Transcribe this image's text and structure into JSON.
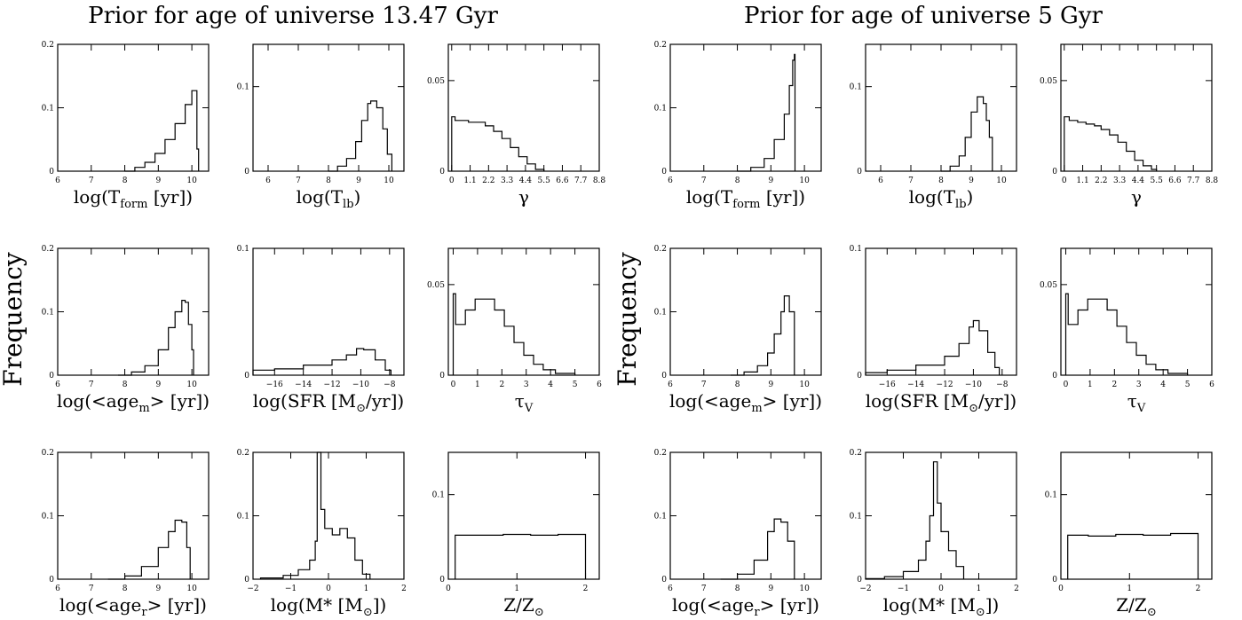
{
  "figure": {
    "left_title": "Prior for age of universe 13.47 Gyr",
    "right_title": "Prior for age of universe 5 Gyr",
    "ylabel": "Frequency"
  },
  "chart_data": [
    {
      "type": "histogram",
      "group": "13.47 Gyr",
      "xlabel": "log(T_form [yr])",
      "xlim": [
        6,
        10.5
      ],
      "ylim": [
        0,
        0.2
      ],
      "xticks": [
        6,
        7,
        8,
        9,
        10
      ],
      "yticks": [
        0,
        0.1,
        0.2
      ],
      "ytick_labels": [
        "0",
        "0.1",
        "0.2"
      ],
      "points": [
        [
          8.0,
          0.0
        ],
        [
          8.3,
          0.006
        ],
        [
          8.6,
          0.014
        ],
        [
          8.9,
          0.028
        ],
        [
          9.2,
          0.05
        ],
        [
          9.5,
          0.075
        ],
        [
          9.8,
          0.105
        ],
        [
          10.0,
          0.127
        ],
        [
          10.1,
          0.127
        ],
        [
          10.15,
          0.035
        ],
        [
          10.2,
          0.0
        ]
      ]
    },
    {
      "type": "histogram",
      "group": "13.47 Gyr",
      "xlabel": "log(T_lb)",
      "xlim": [
        5.5,
        10.5
      ],
      "ylim": [
        0,
        0.15
      ],
      "xticks": [
        6,
        7,
        8,
        9,
        10
      ],
      "yticks": [
        0,
        0.1
      ],
      "ytick_labels": [
        "0",
        "0.1"
      ],
      "points": [
        [
          8.0,
          0.0
        ],
        [
          8.3,
          0.006
        ],
        [
          8.6,
          0.015
        ],
        [
          8.9,
          0.035
        ],
        [
          9.1,
          0.06
        ],
        [
          9.3,
          0.08
        ],
        [
          9.4,
          0.083
        ],
        [
          9.6,
          0.075
        ],
        [
          9.8,
          0.05
        ],
        [
          9.95,
          0.02
        ],
        [
          10.1,
          0.0
        ]
      ]
    },
    {
      "type": "histogram",
      "group": "13.47 Gyr",
      "xlabel": "γ",
      "xlim": [
        -0.2,
        8.8
      ],
      "ylim": [
        0,
        0.07
      ],
      "xticks": [
        0,
        1.1,
        2.2,
        3.3,
        4.4,
        5.5,
        6.6,
        7.7,
        8.8
      ],
      "xtick_labels": [
        "0",
        "1.1",
        "2.2",
        "3.3",
        "4.4",
        "5.5",
        "6.6",
        "7.7",
        "8.8"
      ],
      "yticks": [
        0,
        0.05
      ],
      "ytick_labels": [
        "0",
        "0.05"
      ],
      "points": [
        [
          0.0,
          0.03
        ],
        [
          0.2,
          0.028
        ],
        [
          0.6,
          0.028
        ],
        [
          1.0,
          0.027
        ],
        [
          1.5,
          0.027
        ],
        [
          2.0,
          0.025
        ],
        [
          2.5,
          0.022
        ],
        [
          3.0,
          0.018
        ],
        [
          3.5,
          0.013
        ],
        [
          4.0,
          0.008
        ],
        [
          4.5,
          0.004
        ],
        [
          5.0,
          0.001
        ],
        [
          5.5,
          0.0
        ]
      ]
    },
    {
      "type": "histogram",
      "group": "5 Gyr",
      "xlabel": "log(T_form [yr])",
      "xlim": [
        6,
        10.5
      ],
      "ylim": [
        0,
        0.2
      ],
      "xticks": [
        6,
        7,
        8,
        9,
        10
      ],
      "yticks": [
        0,
        0.1,
        0.2
      ],
      "ytick_labels": [
        "0",
        "0.1",
        "0.2"
      ],
      "points": [
        [
          8.0,
          0.0
        ],
        [
          8.4,
          0.006
        ],
        [
          8.8,
          0.02
        ],
        [
          9.1,
          0.05
        ],
        [
          9.4,
          0.09
        ],
        [
          9.55,
          0.135
        ],
        [
          9.65,
          0.175
        ],
        [
          9.7,
          0.184
        ],
        [
          9.72,
          0.0
        ]
      ]
    },
    {
      "type": "histogram",
      "group": "5 Gyr",
      "xlabel": "log(T_lb)",
      "xlim": [
        5.5,
        10.5
      ],
      "ylim": [
        0,
        0.15
      ],
      "xticks": [
        6,
        7,
        8,
        9,
        10
      ],
      "yticks": [
        0,
        0.1
      ],
      "ytick_labels": [
        "0",
        "0.1"
      ],
      "points": [
        [
          8.0,
          0.0
        ],
        [
          8.3,
          0.006
        ],
        [
          8.6,
          0.018
        ],
        [
          8.8,
          0.04
        ],
        [
          9.0,
          0.07
        ],
        [
          9.2,
          0.088
        ],
        [
          9.4,
          0.08
        ],
        [
          9.5,
          0.06
        ],
        [
          9.6,
          0.04
        ],
        [
          9.7,
          0.0
        ]
      ]
    },
    {
      "type": "histogram",
      "group": "5 Gyr",
      "xlabel": "γ",
      "xlim": [
        -0.2,
        8.8
      ],
      "ylim": [
        0,
        0.07
      ],
      "xticks": [
        0,
        1.1,
        2.2,
        3.3,
        4.4,
        5.5,
        6.6,
        7.7,
        8.8
      ],
      "xtick_labels": [
        "0",
        "1.1",
        "2.2",
        "3.3",
        "4.4",
        "5.5",
        "6.6",
        "7.7",
        "8.8"
      ],
      "yticks": [
        0,
        0.05
      ],
      "ytick_labels": [
        "0",
        "0.05"
      ],
      "points": [
        [
          0.0,
          0.03
        ],
        [
          0.3,
          0.028
        ],
        [
          0.8,
          0.027
        ],
        [
          1.3,
          0.026
        ],
        [
          1.8,
          0.025
        ],
        [
          2.2,
          0.023
        ],
        [
          2.7,
          0.02
        ],
        [
          3.2,
          0.016
        ],
        [
          3.7,
          0.011
        ],
        [
          4.2,
          0.006
        ],
        [
          4.7,
          0.003
        ],
        [
          5.2,
          0.001
        ],
        [
          5.5,
          0.0
        ]
      ]
    },
    {
      "type": "histogram",
      "group": "13.47 Gyr",
      "xlabel": "log(<age_m> [yr])",
      "xlim": [
        6,
        10.5
      ],
      "ylim": [
        0,
        0.2
      ],
      "xticks": [
        6,
        7,
        8,
        9,
        10
      ],
      "yticks": [
        0,
        0.1,
        0.2
      ],
      "ytick_labels": [
        "0",
        "0.1",
        "0.2"
      ],
      "points": [
        [
          7.8,
          0.0
        ],
        [
          8.2,
          0.005
        ],
        [
          8.6,
          0.015
        ],
        [
          9.0,
          0.04
        ],
        [
          9.3,
          0.075
        ],
        [
          9.5,
          0.1
        ],
        [
          9.7,
          0.118
        ],
        [
          9.8,
          0.115
        ],
        [
          9.9,
          0.08
        ],
        [
          10.0,
          0.04
        ],
        [
          10.05,
          0.0
        ]
      ]
    },
    {
      "type": "histogram",
      "group": "13.47 Gyr",
      "xlabel": "log(SFR [M_⊙/yr])",
      "xlim": [
        -17.5,
        -7
      ],
      "ylim": [
        0,
        0.1
      ],
      "xticks": [
        -16,
        -14,
        -12,
        -10,
        -8
      ],
      "xtick_labels": [
        "−16",
        "−14",
        "−12",
        "−10",
        "−8"
      ],
      "yticks": [
        0,
        0.1
      ],
      "ytick_labels": [
        "0",
        "0.1"
      ],
      "points": [
        [
          -17.5,
          0.004
        ],
        [
          -16,
          0.005
        ],
        [
          -14,
          0.008
        ],
        [
          -12,
          0.012
        ],
        [
          -11,
          0.016
        ],
        [
          -10.3,
          0.021
        ],
        [
          -9.8,
          0.02
        ],
        [
          -9,
          0.012
        ],
        [
          -8.3,
          0.004
        ],
        [
          -7.9,
          0.0
        ]
      ]
    },
    {
      "type": "histogram",
      "group": "13.47 Gyr",
      "xlabel": "τ_V",
      "xlim": [
        -0.2,
        6
      ],
      "ylim": [
        0,
        0.07
      ],
      "xticks": [
        0,
        1,
        2,
        3,
        4,
        5,
        6
      ],
      "yticks": [
        0,
        0.05
      ],
      "ytick_labels": [
        "0",
        "0.05"
      ],
      "points": [
        [
          0.0,
          0.045
        ],
        [
          0.1,
          0.028
        ],
        [
          0.5,
          0.036
        ],
        [
          0.9,
          0.042
        ],
        [
          1.3,
          0.042
        ],
        [
          1.7,
          0.036
        ],
        [
          2.1,
          0.027
        ],
        [
          2.5,
          0.018
        ],
        [
          2.9,
          0.011
        ],
        [
          3.3,
          0.006
        ],
        [
          3.7,
          0.003
        ],
        [
          4.2,
          0.001
        ],
        [
          5.0,
          0.0
        ]
      ]
    },
    {
      "type": "histogram",
      "group": "5 Gyr",
      "xlabel": "log(<age_m> [yr])",
      "xlim": [
        6,
        10.5
      ],
      "ylim": [
        0,
        0.2
      ],
      "xticks": [
        6,
        7,
        8,
        9,
        10
      ],
      "yticks": [
        0,
        0.1,
        0.2
      ],
      "ytick_labels": [
        "0",
        "0.1",
        "0.2"
      ],
      "points": [
        [
          7.8,
          0.0
        ],
        [
          8.2,
          0.005
        ],
        [
          8.6,
          0.015
        ],
        [
          8.9,
          0.035
        ],
        [
          9.1,
          0.065
        ],
        [
          9.3,
          0.1
        ],
        [
          9.4,
          0.125
        ],
        [
          9.55,
          0.1
        ],
        [
          9.7,
          0.0
        ]
      ]
    },
    {
      "type": "histogram",
      "group": "5 Gyr",
      "xlabel": "log(SFR [M_⊙/yr])",
      "xlim": [
        -17.5,
        -7
      ],
      "ylim": [
        0,
        0.1
      ],
      "xticks": [
        -16,
        -14,
        -12,
        -10,
        -8
      ],
      "xtick_labels": [
        "−16",
        "−14",
        "−12",
        "−10",
        "−8"
      ],
      "yticks": [
        0,
        0.1
      ],
      "ytick_labels": [
        "0",
        "0.1"
      ],
      "points": [
        [
          -17.5,
          0.002
        ],
        [
          -16,
          0.004
        ],
        [
          -14,
          0.008
        ],
        [
          -12,
          0.015
        ],
        [
          -11,
          0.025
        ],
        [
          -10.3,
          0.038
        ],
        [
          -10.0,
          0.043
        ],
        [
          -9.6,
          0.035
        ],
        [
          -9.0,
          0.018
        ],
        [
          -8.5,
          0.006
        ],
        [
          -8.2,
          0.0
        ]
      ]
    },
    {
      "type": "histogram",
      "group": "5 Gyr",
      "xlabel": "τ_V",
      "xlim": [
        -0.2,
        6
      ],
      "ylim": [
        0,
        0.07
      ],
      "xticks": [
        0,
        1,
        2,
        3,
        4,
        5,
        6
      ],
      "yticks": [
        0,
        0.05
      ],
      "ytick_labels": [
        "0",
        "0.05"
      ],
      "points": [
        [
          0.0,
          0.045
        ],
        [
          0.1,
          0.028
        ],
        [
          0.5,
          0.036
        ],
        [
          0.9,
          0.042
        ],
        [
          1.3,
          0.042
        ],
        [
          1.7,
          0.036
        ],
        [
          2.1,
          0.027
        ],
        [
          2.5,
          0.018
        ],
        [
          2.9,
          0.011
        ],
        [
          3.3,
          0.006
        ],
        [
          3.7,
          0.003
        ],
        [
          4.2,
          0.001
        ],
        [
          5.0,
          0.0
        ]
      ]
    },
    {
      "type": "histogram",
      "group": "13.47 Gyr",
      "xlabel": "log(<age_r> [yr])",
      "xlim": [
        6,
        10.5
      ],
      "ylim": [
        0,
        0.2
      ],
      "xticks": [
        6,
        7,
        8,
        9,
        10
      ],
      "yticks": [
        0,
        0.1,
        0.2
      ],
      "ytick_labels": [
        "0",
        "0.1",
        "0.2"
      ],
      "points": [
        [
          7.5,
          0.0
        ],
        [
          8.0,
          0.005
        ],
        [
          8.5,
          0.02
        ],
        [
          9.0,
          0.05
        ],
        [
          9.3,
          0.075
        ],
        [
          9.5,
          0.093
        ],
        [
          9.7,
          0.09
        ],
        [
          9.85,
          0.05
        ],
        [
          9.95,
          0.0
        ]
      ]
    },
    {
      "type": "histogram",
      "group": "13.47 Gyr",
      "xlabel": "log(M* [M_⊙])",
      "xlim": [
        -2,
        2
      ],
      "ylim": [
        0,
        0.2
      ],
      "xticks": [
        -2,
        -1,
        0,
        1,
        2
      ],
      "xtick_labels": [
        "−2",
        "−1",
        "0",
        "1",
        "2"
      ],
      "yticks": [
        0,
        0.1,
        0.2
      ],
      "ytick_labels": [
        "0",
        "0.1",
        "0.2"
      ],
      "points": [
        [
          -1.8,
          0.002
        ],
        [
          -1.2,
          0.006
        ],
        [
          -0.8,
          0.015
        ],
        [
          -0.5,
          0.03
        ],
        [
          -0.35,
          0.06
        ],
        [
          -0.3,
          0.2
        ],
        [
          -0.2,
          0.11
        ],
        [
          -0.1,
          0.08
        ],
        [
          0.1,
          0.07
        ],
        [
          0.3,
          0.08
        ],
        [
          0.5,
          0.065
        ],
        [
          0.7,
          0.03
        ],
        [
          0.9,
          0.008
        ],
        [
          1.1,
          0.0
        ]
      ]
    },
    {
      "type": "histogram",
      "group": "13.47 Gyr",
      "xlabel": "Z/Z_⊙",
      "xlim": [
        0,
        2.2
      ],
      "ylim": [
        0,
        0.15
      ],
      "xticks": [
        0,
        1,
        2
      ],
      "yticks": [
        0,
        0.1
      ],
      "ytick_labels": [
        "0",
        "0.1"
      ],
      "points": [
        [
          0.1,
          0.052
        ],
        [
          0.4,
          0.052
        ],
        [
          0.8,
          0.053
        ],
        [
          1.2,
          0.052
        ],
        [
          1.6,
          0.053
        ],
        [
          2.0,
          0.0
        ]
      ]
    },
    {
      "type": "histogram",
      "group": "5 Gyr",
      "xlabel": "log(<age_r> [yr])",
      "xlim": [
        6,
        10.5
      ],
      "ylim": [
        0,
        0.2
      ],
      "xticks": [
        6,
        7,
        8,
        9,
        10
      ],
      "yticks": [
        0,
        0.1,
        0.2
      ],
      "ytick_labels": [
        "0",
        "0.1",
        "0.2"
      ],
      "points": [
        [
          7.5,
          0.0
        ],
        [
          8.0,
          0.008
        ],
        [
          8.5,
          0.03
        ],
        [
          8.9,
          0.075
        ],
        [
          9.1,
          0.095
        ],
        [
          9.3,
          0.09
        ],
        [
          9.5,
          0.06
        ],
        [
          9.7,
          0.0
        ]
      ]
    },
    {
      "type": "histogram",
      "group": "5 Gyr",
      "xlabel": "log(M* [M_⊙])",
      "xlim": [
        -2,
        2
      ],
      "ylim": [
        0,
        0.2
      ],
      "xticks": [
        -2,
        -1,
        0,
        1,
        2
      ],
      "xtick_labels": [
        "−2",
        "−1",
        "0",
        "1",
        "2"
      ],
      "yticks": [
        0,
        0.1,
        0.2
      ],
      "ytick_labels": [
        "0",
        "0.1",
        "0.2"
      ],
      "points": [
        [
          -2.0,
          0.001
        ],
        [
          -1.5,
          0.004
        ],
        [
          -1.0,
          0.012
        ],
        [
          -0.6,
          0.03
        ],
        [
          -0.4,
          0.06
        ],
        [
          -0.3,
          0.1
        ],
        [
          -0.2,
          0.185
        ],
        [
          -0.1,
          0.12
        ],
        [
          0.0,
          0.075
        ],
        [
          0.2,
          0.045
        ],
        [
          0.4,
          0.02
        ],
        [
          0.6,
          0.0
        ]
      ]
    },
    {
      "type": "histogram",
      "group": "5 Gyr",
      "xlabel": "Z/Z_⊙",
      "xlim": [
        0,
        2.2
      ],
      "ylim": [
        0,
        0.15
      ],
      "xticks": [
        0,
        1,
        2
      ],
      "yticks": [
        0,
        0.1
      ],
      "ytick_labels": [
        "0",
        "0.1"
      ],
      "points": [
        [
          0.1,
          0.052
        ],
        [
          0.4,
          0.051
        ],
        [
          0.8,
          0.053
        ],
        [
          1.2,
          0.052
        ],
        [
          1.6,
          0.054
        ],
        [
          2.0,
          0.0
        ]
      ]
    }
  ]
}
